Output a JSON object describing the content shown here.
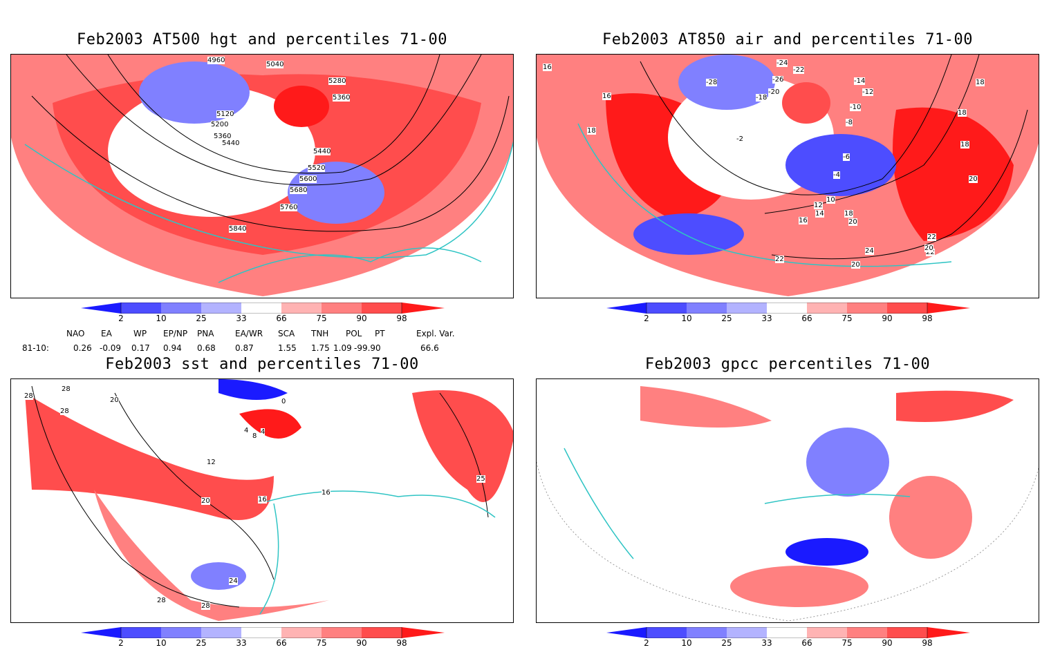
{
  "panels": [
    {
      "id": "hgt",
      "title": "Feb2003 AT500 hgt and percentiles 71-00",
      "contour_labels": [
        "4960",
        "5040",
        "5120",
        "5200",
        "5280",
        "5360",
        "5440",
        "5520",
        "5600",
        "5680",
        "5760",
        "5840",
        "5360",
        "5440"
      ]
    },
    {
      "id": "air",
      "title": "Feb2003 AT850 air and percentiles 71-00",
      "contour_labels": [
        "16",
        "18",
        "18",
        "16",
        "18",
        "-28",
        "-24",
        "-22",
        "-26",
        "-18",
        "-20",
        "-14",
        "-12",
        "-10",
        "-8",
        "-6",
        "-2",
        "-4",
        "10",
        "12",
        "14",
        "16",
        "18",
        "20",
        "20",
        "22",
        "22",
        "24",
        "20",
        "22",
        "20",
        "18"
      ]
    },
    {
      "id": "sst",
      "title": "Feb2003 sst and percentiles 71-00",
      "contour_labels": [
        "28",
        "28",
        "28",
        "20",
        "12",
        "16",
        "20",
        "24",
        "28",
        "28",
        "4",
        "8",
        "4",
        "0",
        "16",
        "25"
      ]
    },
    {
      "id": "gpcc",
      "title": "Feb2003 gpcc percentiles 71-00",
      "contour_labels": []
    }
  ],
  "colorbar": {
    "labels": [
      "2",
      "10",
      "25",
      "33",
      "66",
      "75",
      "90",
      "98"
    ],
    "colors": {
      "blue_dark": "#1a1aff",
      "blue_mid": "#4d4dff",
      "blue_light": "#8080ff",
      "blue_pale": "#b3b3ff",
      "red_pale": "#ffb3b3",
      "red_light": "#ff8080",
      "red_mid": "#ff4d4d",
      "red_dark": "#ff1a1a"
    }
  },
  "teleconnection": {
    "headers": [
      "NAO",
      "EA",
      "WP",
      "EP/NP",
      "PNA",
      "EA/WR",
      "SCA",
      "TNH",
      "POL",
      "PT",
      "Expl. Var."
    ],
    "row_label": "81-10:",
    "values": [
      "0.26",
      "-0.09",
      "0.17",
      "0.94",
      "0.68",
      "0.87",
      "1.55",
      "1.75",
      "1.09",
      "-99.90",
      "66.6"
    ]
  },
  "colors": {
    "coast": "#2ec4c4",
    "contour": "#000000"
  }
}
